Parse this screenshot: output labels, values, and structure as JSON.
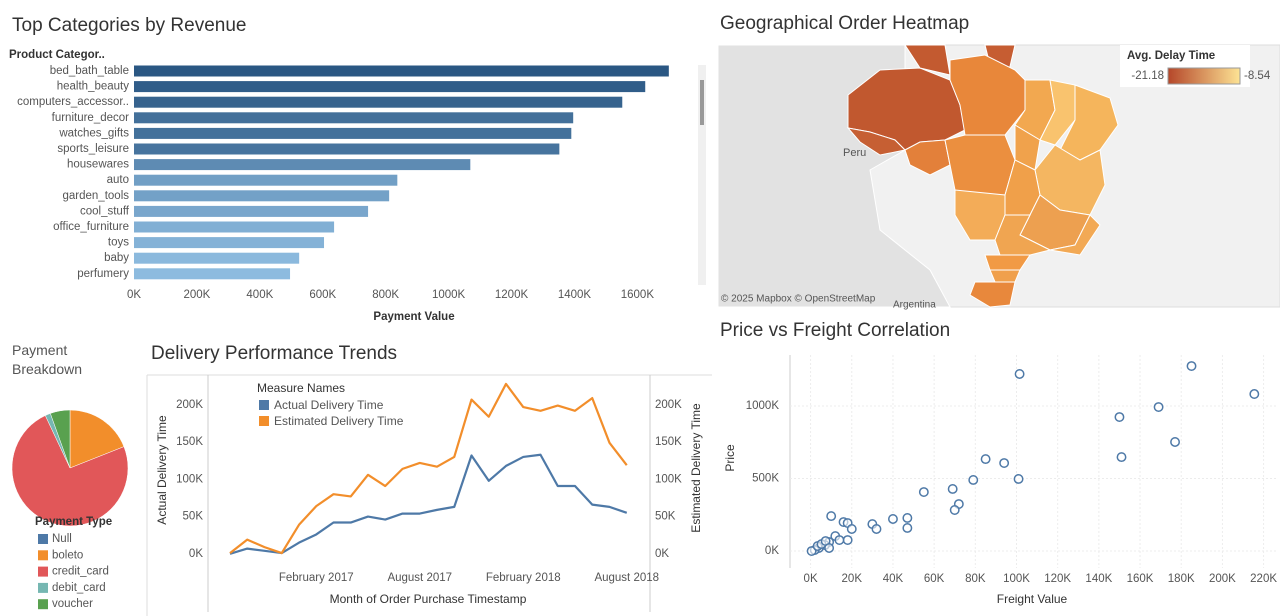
{
  "chart_data": [
    {
      "type": "hbar",
      "title": "Top Categories by Revenue",
      "y_header": "Product Categor..",
      "x_label": "Payment Value",
      "categories": [
        "bed_bath_table",
        "health_beauty",
        "computers_accessor..",
        "furniture_decor",
        "watches_gifts",
        "sports_leisure",
        "housewares",
        "auto",
        "garden_tools",
        "cool_stuff",
        "office_furniture",
        "toys",
        "baby",
        "perfumery"
      ],
      "values": [
        1700000,
        1625000,
        1552000,
        1396000,
        1390000,
        1352000,
        1069000,
        837000,
        811000,
        744000,
        636000,
        604000,
        525000,
        496000
      ],
      "color_range": [
        "#8dbbdf",
        "#2a5783"
      ],
      "xlim": [
        0,
        1780000
      ],
      "xticks": [
        {
          "value": 0,
          "label": "0K"
        },
        {
          "value": 200000,
          "label": "200K"
        },
        {
          "value": 400000,
          "label": "400K"
        },
        {
          "value": 600000,
          "label": "600K"
        },
        {
          "value": 800000,
          "label": "800K"
        },
        {
          "value": 1000000,
          "label": "1000K"
        },
        {
          "value": 1200000,
          "label": "1200K"
        },
        {
          "value": 1400000,
          "label": "1400K"
        },
        {
          "value": 1600000,
          "label": "1600K"
        }
      ],
      "grid": false
    },
    {
      "type": "map",
      "title": "Geographical Order Heatmap",
      "legend_title": "Avg. Delay Time",
      "clim": [
        -21.18,
        -8.54
      ],
      "colors": [
        "#b5472a",
        "#fde394"
      ],
      "annotations": [
        "Peru",
        "Argentina",
        "© 2025 Mapbox © OpenStreetMap"
      ]
    },
    {
      "type": "pie",
      "title": "Payment Breakdown",
      "legend_title": "Payment Type",
      "categories": [
        "Null",
        "boleto",
        "credit_card",
        "debit_card",
        "voucher"
      ],
      "values": [
        0,
        19,
        74,
        1.5,
        5.5
      ],
      "colors": [
        "#4e79a7",
        "#f28e2b",
        "#e15759",
        "#76b7b2",
        "#59a14f"
      ]
    },
    {
      "type": "line",
      "title": "Delivery Performance Trends",
      "legend_title": "Measure Names",
      "x_label": "Month of Order Purchase Timestamp",
      "y_label": "Actual Delivery Time",
      "y2_label": "Estimated Delivery Time",
      "categories": [
        null,
        null,
        null,
        null,
        null,
        "February 2017",
        null,
        null,
        null,
        null,
        null,
        "August 2017",
        null,
        null,
        null,
        null,
        null,
        "February 2018",
        null,
        null,
        null,
        null,
        null,
        "August 2018"
      ],
      "series": [
        {
          "name": "Actual Delivery Time",
          "color": "#4e79a7",
          "axis": "y",
          "values": [
            0,
            7000,
            4000,
            1000,
            15000,
            26000,
            42000,
            42000,
            50000,
            46000,
            54000,
            54000,
            59000,
            63000,
            132000,
            98000,
            118000,
            130000,
            133000,
            91000,
            91000,
            66000,
            63000,
            55000
          ]
        },
        {
          "name": "Estimated Delivery Time",
          "color": "#f28e2b",
          "axis": "y2",
          "values": [
            1000,
            19000,
            9000,
            1000,
            39000,
            64000,
            80000,
            77000,
            106000,
            91000,
            114000,
            122000,
            117000,
            130000,
            207000,
            184000,
            228000,
            197000,
            192000,
            199000,
            192000,
            209000,
            149000,
            119000
          ]
        }
      ],
      "ylim": [
        -15000,
        240000
      ],
      "y2lim": [
        -15000,
        240000
      ],
      "yticks": [
        {
          "value": 0,
          "label": "0K"
        },
        {
          "value": 50000,
          "label": "50K"
        },
        {
          "value": 100000,
          "label": "100K"
        },
        {
          "value": 150000,
          "label": "150K"
        },
        {
          "value": 200000,
          "label": "200K"
        }
      ],
      "y2ticks": [
        {
          "value": 0,
          "label": "0K"
        },
        {
          "value": 50000,
          "label": "50K"
        },
        {
          "value": 100000,
          "label": "100K"
        },
        {
          "value": 150000,
          "label": "150K"
        },
        {
          "value": 200000,
          "label": "200K"
        }
      ],
      "grid": false
    },
    {
      "type": "scatter",
      "title": "Price vs Freight Correlation",
      "x_label": "Freight Value",
      "y_label": "Price",
      "color": "#4e79a7",
      "x": [
        101500,
        185000,
        215500,
        150000,
        169000,
        177000,
        151000,
        85000,
        94000,
        101000,
        79000,
        69000,
        72000,
        70000,
        55000,
        47000,
        47000,
        40000,
        30000,
        32000,
        10000,
        16000,
        18000,
        20000,
        12000,
        18000,
        14000,
        9000,
        7000,
        4000,
        2000,
        500,
        3400,
        5300,
        7300,
        9000
      ],
      "y": [
        1221000,
        1276000,
        1083000,
        924000,
        993000,
        752000,
        648000,
        634000,
        607000,
        497000,
        490000,
        428000,
        324000,
        283000,
        407000,
        228000,
        159000,
        221000,
        186000,
        152000,
        241000,
        200000,
        193000,
        152000,
        103000,
        76000,
        76000,
        62000,
        41000,
        21000,
        7000,
        0,
        34000,
        48000,
        69000,
        21000
      ],
      "xlim": [
        -10000,
        227000
      ],
      "ylim": [
        -117000,
        1352000
      ],
      "xticks": [
        {
          "value": 0,
          "label": "0K"
        },
        {
          "value": 20000,
          "label": "20K"
        },
        {
          "value": 40000,
          "label": "40K"
        },
        {
          "value": 60000,
          "label": "60K"
        },
        {
          "value": 80000,
          "label": "80K"
        },
        {
          "value": 100000,
          "label": "100K"
        },
        {
          "value": 120000,
          "label": "120K"
        },
        {
          "value": 140000,
          "label": "140K"
        },
        {
          "value": 160000,
          "label": "160K"
        },
        {
          "value": 180000,
          "label": "180K"
        },
        {
          "value": 200000,
          "label": "200K"
        },
        {
          "value": 220000,
          "label": "220K"
        }
      ],
      "yticks": [
        {
          "value": 0,
          "label": "0K"
        },
        {
          "value": 500000,
          "label": "500K"
        },
        {
          "value": 1000000,
          "label": "1000K"
        }
      ],
      "grid": true
    }
  ]
}
